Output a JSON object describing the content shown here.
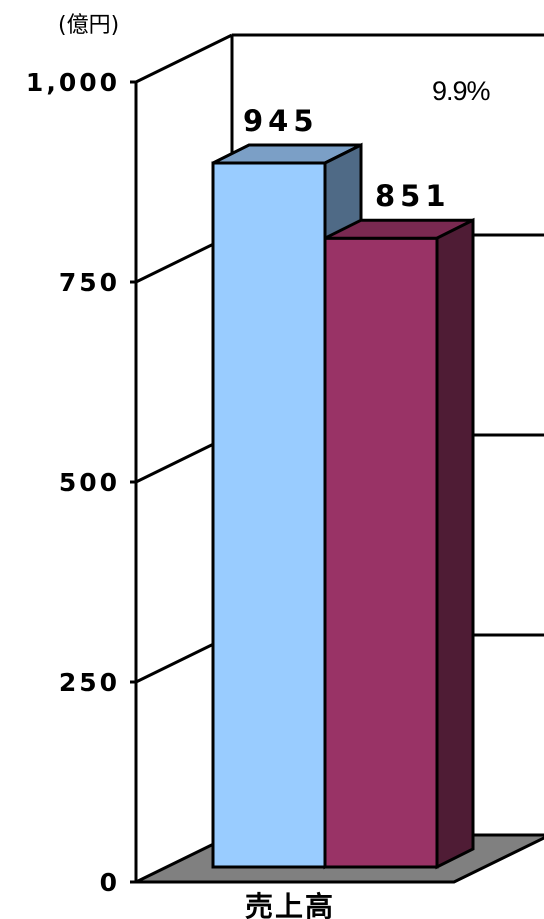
{
  "chart_data": {
    "type": "bar",
    "unit_label": "(億円)",
    "categories": [
      "売上高"
    ],
    "series": [
      {
        "values": [
          945
        ],
        "label": "945",
        "color": "#99ccff",
        "side_color": "#4f6a86",
        "top_color": "#7b9fc6"
      },
      {
        "values": [
          851
        ],
        "label": "851",
        "color": "#993366",
        "side_color": "#4f1c35",
        "top_color": "#7a2951"
      }
    ],
    "annotation": "9.9%",
    "ylim": [
      0,
      1000
    ],
    "y_ticks": [
      "0",
      "250",
      "500",
      "750",
      "1,000"
    ],
    "floor_color": "#808080",
    "grid": true
  }
}
